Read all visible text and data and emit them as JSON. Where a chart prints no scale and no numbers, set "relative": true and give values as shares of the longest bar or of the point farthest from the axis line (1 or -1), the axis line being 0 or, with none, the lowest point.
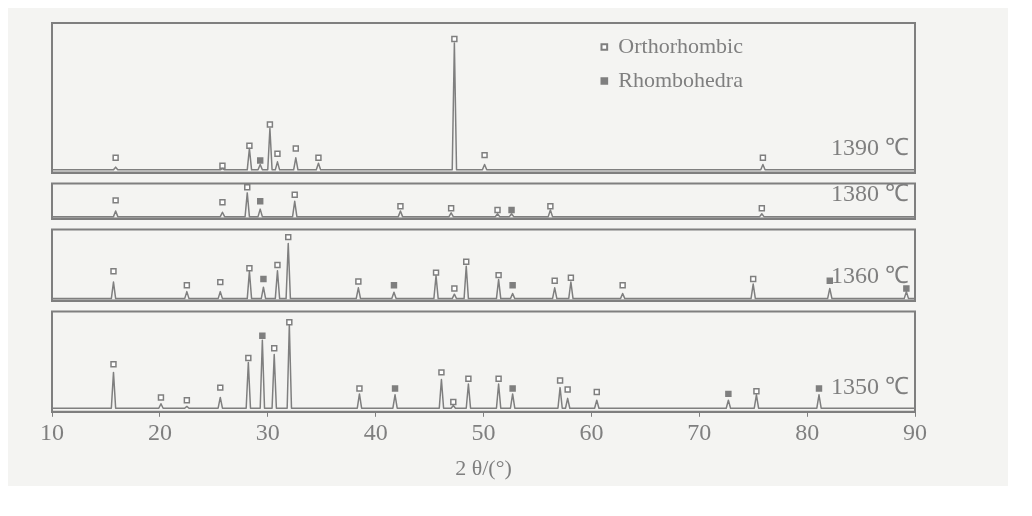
{
  "chart_data": [
    {
      "type": "line",
      "relative": true,
      "xlim": [
        10,
        90
      ],
      "xticks": [
        10,
        20,
        30,
        40,
        50,
        60,
        70,
        80,
        90
      ],
      "tick_labels": false,
      "legend": "top right",
      "annotations": [
        "1390 ℃"
      ],
      "series": [
        {
          "color": "#7f7f7f",
          "x": [
            10,
            15.7,
            15.9,
            16.1,
            25.6,
            25.8,
            26,
            28.1,
            28.3,
            28.5,
            29.1,
            29.3,
            29.5,
            30,
            30.2,
            30.4,
            30.7,
            30.9,
            31.1,
            32.4,
            32.6,
            32.8,
            34.5,
            34.7,
            34.9,
            47.1,
            47.3,
            47.5,
            49.9,
            50.1,
            50.3,
            75.7,
            75.9,
            76.1,
            90
          ],
          "values": [
            0.02,
            0.02,
            0.04,
            0.02,
            0.02,
            0.03,
            0.02,
            0.02,
            0.18,
            0.02,
            0.02,
            0.06,
            0.02,
            0.02,
            0.33,
            0.02,
            0.02,
            0.08,
            0.02,
            0.02,
            0.11,
            0.02,
            0.02,
            0.07,
            0.02,
            0.02,
            0.97,
            0.02,
            0.02,
            0.06,
            0.02,
            0.02,
            0.06,
            0.02,
            0.02
          ]
        },
        {
          "name": "Orthorhombic",
          "type": "scatter",
          "marker": "square",
          "color": "#7f7f7f",
          "x": [
            15.9,
            25.8,
            28.3,
            30.2,
            30.9,
            32.6,
            34.7,
            47.3,
            50.1,
            75.9
          ],
          "values": [
            0.11,
            0.05,
            0.2,
            0.36,
            0.14,
            0.18,
            0.11,
            1,
            0.13,
            0.11
          ]
        },
        {
          "name": "Rhombohedra",
          "type": "scatter",
          "marker": "square",
          "color": "#7f7f7f",
          "x": [
            29.3
          ],
          "values": [
            0.09
          ]
        }
      ]
    },
    {
      "type": "line",
      "relative": true,
      "xlim": [
        10,
        90
      ],
      "xticks": [
        10,
        20,
        30,
        40,
        50,
        60,
        70,
        80,
        90
      ],
      "tick_labels": false,
      "annotations": [
        "1380 ℃"
      ],
      "series": [
        {
          "color": "#7f7f7f",
          "x": [
            10,
            15.7,
            15.9,
            16.1,
            25.6,
            25.8,
            26,
            27.9,
            28.1,
            28.3,
            29.1,
            29.3,
            29.5,
            32.3,
            32.5,
            32.7,
            42.1,
            42.3,
            42.5,
            46.8,
            47,
            47.2,
            51.1,
            51.3,
            51.5,
            52.4,
            52.6,
            52.8,
            56,
            56.2,
            56.4,
            75.6,
            75.8,
            76,
            90
          ],
          "values": [
            0.06,
            0.06,
            0.24,
            0.06,
            0.06,
            0.2,
            0.06,
            0.06,
            0.82,
            0.06,
            0.06,
            0.3,
            0.06,
            0.06,
            0.55,
            0.06,
            0.06,
            0.24,
            0.06,
            0.06,
            0.18,
            0.06,
            0.06,
            0.15,
            0.06,
            0.06,
            0.15,
            0.06,
            0.06,
            0.27,
            0.06,
            0.06,
            0.15,
            0.06,
            0.06
          ]
        },
        {
          "type": "scatter",
          "marker": "square",
          "color": "#7f7f7f",
          "x": [
            15.9,
            25.8,
            28.1,
            32.5,
            42.3,
            47,
            51.3,
            56.2,
            75.8
          ],
          "values": [
            0.58,
            0.52,
            1,
            0.76,
            0.39,
            0.33,
            0.27,
            0.39,
            0.33
          ]
        },
        {
          "type": "scatter",
          "marker": "square",
          "color": "#7f7f7f",
          "x": [
            29.3,
            52.6
          ],
          "values": [
            0.55,
            0.27
          ]
        }
      ]
    },
    {
      "type": "line",
      "relative": true,
      "xlim": [
        10,
        90
      ],
      "xticks": [
        10,
        20,
        30,
        40,
        50,
        60,
        70,
        80,
        90
      ],
      "tick_labels": false,
      "annotations": [
        "1360 ℃"
      ],
      "series": [
        {
          "color": "#7f7f7f",
          "x": [
            10,
            15.5,
            15.7,
            15.9,
            22.3,
            22.5,
            22.7,
            25.4,
            25.6,
            25.8,
            28.1,
            28.3,
            28.5,
            29.4,
            29.6,
            29.8,
            30.7,
            30.9,
            31.1,
            31.7,
            31.9,
            32.1,
            38.2,
            38.4,
            38.6,
            41.5,
            41.7,
            41.9,
            45.4,
            45.6,
            45.8,
            47.1,
            47.3,
            47.5,
            48.2,
            48.4,
            48.6,
            51.2,
            51.4,
            51.6,
            52.5,
            52.7,
            52.9,
            56.4,
            56.6,
            56.8,
            57.9,
            58.1,
            58.3,
            62.7,
            62.9,
            63.1,
            74.8,
            75,
            75.2,
            81.9,
            82.1,
            82.3,
            89,
            89.2,
            89.4,
            90
          ],
          "values": [
            0.03,
            0.03,
            0.29,
            0.03,
            0.03,
            0.14,
            0.03,
            0.03,
            0.14,
            0.03,
            0.03,
            0.46,
            0.03,
            0.03,
            0.21,
            0.03,
            0.03,
            0.47,
            0.03,
            0.03,
            0.9,
            0.03,
            0.03,
            0.2,
            0.03,
            0.03,
            0.13,
            0.03,
            0.03,
            0.39,
            0.03,
            0.03,
            0.1,
            0.03,
            0.03,
            0.54,
            0.03,
            0.03,
            0.33,
            0.03,
            0.03,
            0.11,
            0.03,
            0.03,
            0.2,
            0.03,
            0.03,
            0.29,
            0.03,
            0.03,
            0.11,
            0.03,
            0.03,
            0.26,
            0.03,
            0.03,
            0.19,
            0.03,
            0.03,
            0.14,
            0.03,
            0.03
          ]
        },
        {
          "type": "scatter",
          "marker": "square",
          "color": "#7f7f7f",
          "x": [
            15.7,
            22.5,
            25.6,
            28.3,
            30.9,
            31.9,
            38.4,
            45.6,
            47.3,
            48.4,
            51.4,
            56.6,
            58.1,
            62.9,
            75
          ],
          "values": [
            0.46,
            0.24,
            0.29,
            0.51,
            0.56,
            1,
            0.3,
            0.44,
            0.19,
            0.61,
            0.4,
            0.31,
            0.36,
            0.24,
            0.34
          ]
        },
        {
          "type": "scatter",
          "marker": "square",
          "color": "#7f7f7f",
          "x": [
            29.6,
            41.7,
            52.7,
            82.1,
            89.2
          ],
          "values": [
            0.34,
            0.24,
            0.24,
            0.31,
            0.19
          ]
        }
      ]
    },
    {
      "type": "line",
      "relative": true,
      "xlim": [
        10,
        90
      ],
      "xticks": [
        10,
        20,
        30,
        40,
        50,
        60,
        70,
        80,
        90
      ],
      "xlabel": "2 θ/(°)",
      "tick_labels": "x",
      "annotations": [
        "1350 ℃"
      ],
      "series": [
        {
          "color": "#7f7f7f",
          "x": [
            10,
            15.5,
            15.7,
            15.9,
            19.9,
            20.1,
            20.3,
            22.3,
            22.5,
            22.7,
            25.4,
            25.6,
            25.8,
            28,
            28.2,
            28.4,
            29.3,
            29.5,
            29.7,
            30.4,
            30.6,
            30.8,
            31.8,
            32,
            32.2,
            38.3,
            38.5,
            38.7,
            41.6,
            41.8,
            42,
            45.9,
            46.1,
            46.3,
            47,
            47.2,
            47.4,
            48.4,
            48.6,
            48.8,
            51.2,
            51.4,
            51.6,
            52.5,
            52.7,
            52.9,
            56.9,
            57.1,
            57.3,
            57.6,
            57.8,
            58,
            60.3,
            60.5,
            60.7,
            72.5,
            72.7,
            72.9,
            75.1,
            75.3,
            75.5,
            80.9,
            81.1,
            81.3,
            90
          ],
          "values": [
            0.04,
            0.04,
            0.44,
            0.04,
            0.04,
            0.09,
            0.04,
            0.04,
            0.06,
            0.04,
            0.04,
            0.16,
            0.04,
            0.04,
            0.55,
            0.04,
            0.04,
            0.8,
            0.04,
            0.04,
            0.64,
            0.04,
            0.04,
            0.97,
            0.04,
            0.04,
            0.2,
            0.04,
            0.04,
            0.19,
            0.04,
            0.04,
            0.36,
            0.04,
            0.04,
            0.07,
            0.04,
            0.04,
            0.31,
            0.04,
            0.04,
            0.31,
            0.04,
            0.04,
            0.2,
            0.04,
            0.04,
            0.27,
            0.04,
            0.04,
            0.15,
            0.04,
            0.04,
            0.13,
            0.04,
            0.04,
            0.13,
            0.04,
            0.04,
            0.19,
            0.04,
            0.04,
            0.19,
            0.04,
            0.04
          ]
        },
        {
          "type": "scatter",
          "marker": "square",
          "color": "#7f7f7f",
          "x": [
            15.7,
            20.1,
            22.5,
            25.6,
            28.2,
            30.6,
            32,
            38.5,
            46.1,
            47.2,
            48.6,
            51.4,
            57.1,
            57.8,
            60.5,
            75.3
          ],
          "values": [
            0.53,
            0.16,
            0.13,
            0.27,
            0.6,
            0.71,
            1,
            0.26,
            0.44,
            0.11,
            0.37,
            0.37,
            0.35,
            0.25,
            0.22,
            0.23
          ]
        },
        {
          "type": "scatter",
          "marker": "square",
          "color": "#7f7f7f",
          "x": [
            29.5,
            41.8,
            52.7,
            72.7,
            81.1
          ],
          "values": [
            0.85,
            0.26,
            0.26,
            0.2,
            0.26
          ]
        }
      ]
    }
  ]
}
